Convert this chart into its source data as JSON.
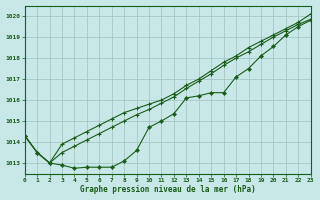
{
  "title": "Graphe pression niveau de la mer (hPa)",
  "bg_color": "#c8e8e8",
  "grid_color": "#a0c0c0",
  "line_color": "#1a5c1a",
  "xlim": [
    0,
    23
  ],
  "ylim": [
    1012.5,
    1020.5
  ],
  "yticks": [
    1013,
    1014,
    1015,
    1016,
    1017,
    1018,
    1019,
    1020
  ],
  "xticks": [
    0,
    1,
    2,
    3,
    4,
    5,
    6,
    7,
    8,
    9,
    10,
    11,
    12,
    13,
    14,
    15,
    16,
    17,
    18,
    19,
    20,
    21,
    22,
    23
  ],
  "series1": [
    1014.3,
    1013.5,
    1013.0,
    1012.9,
    1012.75,
    1012.8,
    1012.8,
    1012.8,
    1013.1,
    1013.6,
    1014.7,
    1015.0,
    1015.35,
    1016.1,
    1016.2,
    1016.35,
    1016.35,
    1017.1,
    1017.5,
    1018.1,
    1018.55,
    1019.1,
    1019.5,
    1019.8
  ],
  "series2": [
    1014.3,
    1013.5,
    1013.0,
    1013.9,
    1014.2,
    1014.5,
    1014.8,
    1015.1,
    1015.4,
    1015.6,
    1015.8,
    1016.0,
    1016.3,
    1016.7,
    1017.0,
    1017.4,
    1017.8,
    1018.1,
    1018.5,
    1018.8,
    1019.1,
    1019.4,
    1019.7,
    1020.1
  ],
  "series3": [
    1014.3,
    1013.5,
    1013.0,
    1013.5,
    1013.8,
    1014.1,
    1014.4,
    1014.7,
    1015.0,
    1015.3,
    1015.55,
    1015.85,
    1016.15,
    1016.55,
    1016.9,
    1017.25,
    1017.65,
    1018.0,
    1018.3,
    1018.65,
    1019.0,
    1019.3,
    1019.6,
    1019.85
  ]
}
